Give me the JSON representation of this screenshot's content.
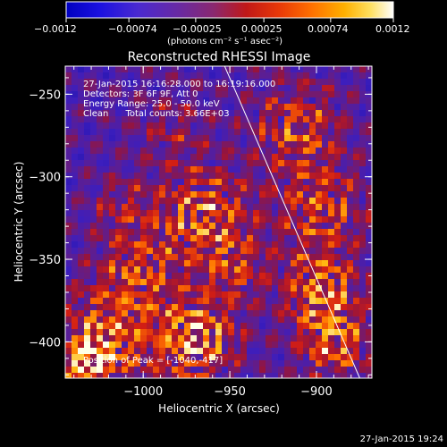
{
  "chart_data": {
    "type": "heatmap",
    "title": "Reconstructed RHESSI Image",
    "xlabel": "Heliocentric X (arcsec)",
    "ylabel": "Heliocentric Y (arcsec)",
    "x_ticks": [
      -1000,
      -950,
      -900
    ],
    "x_tick_labels": [
      "−1000",
      "−950",
      "−900"
    ],
    "y_ticks": [
      -250,
      -300,
      -350,
      -400
    ],
    "y_tick_labels": [
      "−250",
      "−300",
      "−350",
      "−400"
    ],
    "xlim": [
      -1045,
      -868
    ],
    "ylim": [
      -422,
      -233
    ],
    "colorbar": {
      "min": -0.0012,
      "max": 0.0012,
      "ticks": [
        -0.0012,
        -0.00074,
        -0.00025,
        0.00025,
        0.00074,
        0.0012
      ],
      "tick_labels": [
        "−0.0012",
        "−0.00074",
        "−0.00025",
        "0.00025",
        "0.00074",
        "0.0012"
      ],
      "unit_label": "(photons cm⁻² s⁻¹ asec⁻²)"
    },
    "annotations": {
      "time_range": "27-Jan-2015 16:16:28.000 to 16:19:16.000",
      "detectors": "Detectors: 3F 6F 9F, Att 0",
      "energy": "Energy Range: 25.0 - 50.0 keV",
      "clean": "Clean      Total counts: 3.66E+03",
      "peak": "Position of Peak = [-1040,-417]"
    },
    "limb_line": [
      [
        -953,
        -233
      ],
      [
        -875,
        -422
      ]
    ],
    "footer_timestamp": "27-Jan-2015 19:24"
  }
}
